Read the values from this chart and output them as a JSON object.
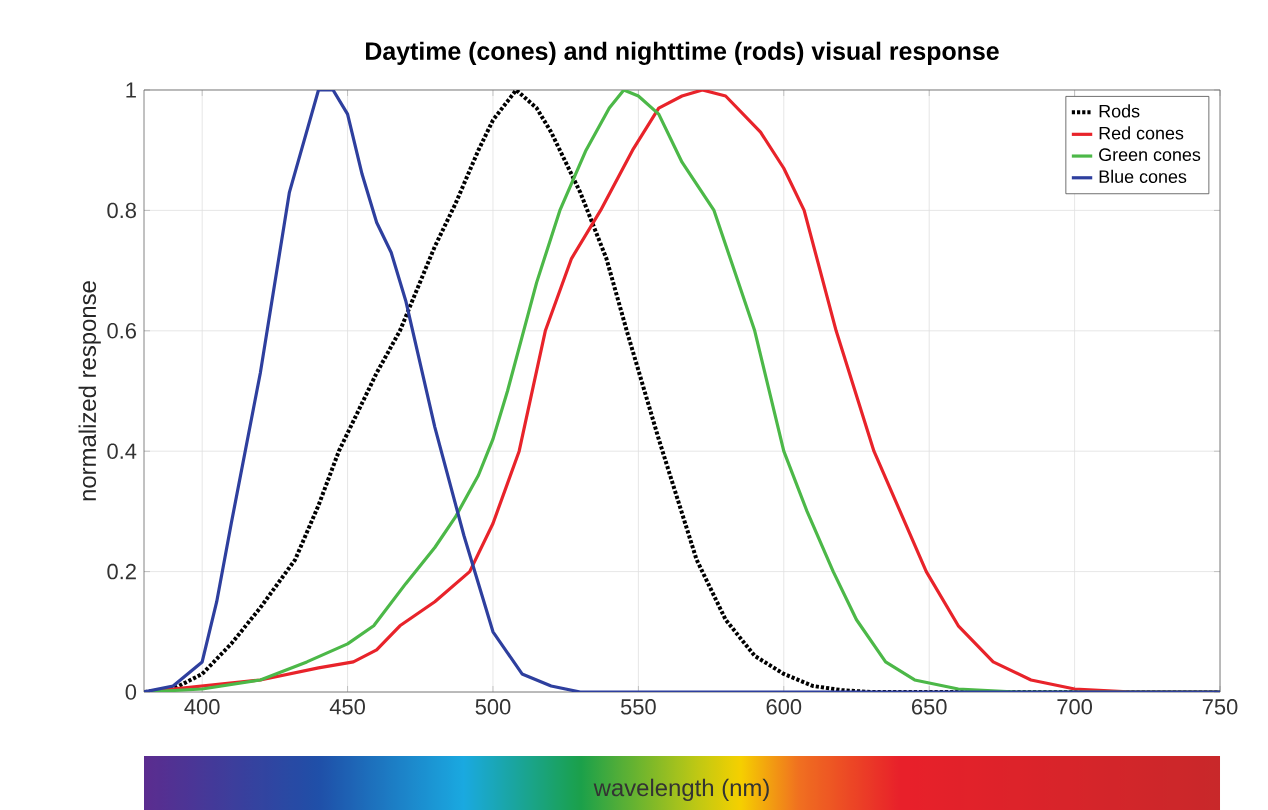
{
  "chart_data": {
    "type": "line",
    "title": "Daytime (cones) and nighttime (rods) visual response",
    "xlabel": "wavelength (nm)",
    "ylabel": "normalized response",
    "xlim": [
      380,
      750
    ],
    "ylim": [
      0,
      1
    ],
    "xticks": [
      400,
      450,
      500,
      550,
      600,
      650,
      700,
      750
    ],
    "yticks": [
      0,
      0.2,
      0.4,
      0.6,
      0.8,
      1
    ],
    "grid": true,
    "legend": "top right",
    "series": [
      {
        "name": "Rods",
        "color": "#000000",
        "line_style": "dotted",
        "x": [
          380,
          390,
          400,
          410,
          420,
          432,
          440,
          447,
          460,
          468,
          480,
          487,
          495,
          500,
          508,
          515,
          520,
          530,
          539,
          546,
          557,
          570,
          580,
          590,
          600,
          610,
          620,
          630,
          750
        ],
        "values": [
          0,
          0.005,
          0.03,
          0.08,
          0.14,
          0.22,
          0.31,
          0.4,
          0.53,
          0.6,
          0.74,
          0.81,
          0.9,
          0.95,
          1.0,
          0.97,
          0.93,
          0.83,
          0.72,
          0.6,
          0.42,
          0.22,
          0.12,
          0.06,
          0.03,
          0.01,
          0.003,
          0,
          0
        ]
      },
      {
        "name": "Red cones",
        "color": "#e8232a",
        "line_style": "solid",
        "x": [
          380,
          420,
          440,
          452,
          460,
          468,
          480,
          492,
          500,
          509,
          518,
          527,
          537,
          548,
          557,
          565,
          572,
          580,
          592,
          600,
          607,
          618,
          631,
          649,
          660,
          672,
          685,
          700,
          720,
          750
        ],
        "values": [
          0,
          0.02,
          0.04,
          0.05,
          0.07,
          0.11,
          0.15,
          0.2,
          0.28,
          0.4,
          0.6,
          0.72,
          0.8,
          0.9,
          0.97,
          0.99,
          1.0,
          0.99,
          0.93,
          0.87,
          0.8,
          0.6,
          0.4,
          0.2,
          0.11,
          0.05,
          0.02,
          0.005,
          0,
          0
        ]
      },
      {
        "name": "Green cones",
        "color": "#4cb848",
        "line_style": "solid",
        "x": [
          380,
          400,
          420,
          436,
          450,
          459,
          470,
          480,
          487,
          495,
          500,
          505,
          510,
          515,
          523,
          532,
          540,
          545,
          550,
          557,
          565,
          576,
          583,
          590,
          600,
          608,
          617,
          625,
          635,
          645,
          660,
          680,
          750
        ],
        "values": [
          0,
          0.005,
          0.02,
          0.05,
          0.08,
          0.11,
          0.18,
          0.24,
          0.29,
          0.36,
          0.42,
          0.5,
          0.59,
          0.68,
          0.8,
          0.9,
          0.97,
          1.0,
          0.99,
          0.96,
          0.88,
          0.8,
          0.7,
          0.6,
          0.4,
          0.3,
          0.2,
          0.12,
          0.05,
          0.02,
          0.005,
          0,
          0
        ]
      },
      {
        "name": "Blue cones",
        "color": "#2e3f9e",
        "line_style": "solid",
        "x": [
          380,
          390,
          400,
          405,
          410,
          420,
          430,
          440,
          445,
          450,
          455,
          460,
          465,
          470,
          480,
          490,
          500,
          510,
          520,
          530,
          750
        ],
        "values": [
          0,
          0.01,
          0.05,
          0.15,
          0.28,
          0.53,
          0.83,
          1.0,
          1.0,
          0.96,
          0.86,
          0.78,
          0.73,
          0.65,
          0.44,
          0.26,
          0.1,
          0.03,
          0.01,
          0,
          0
        ]
      }
    ]
  }
}
